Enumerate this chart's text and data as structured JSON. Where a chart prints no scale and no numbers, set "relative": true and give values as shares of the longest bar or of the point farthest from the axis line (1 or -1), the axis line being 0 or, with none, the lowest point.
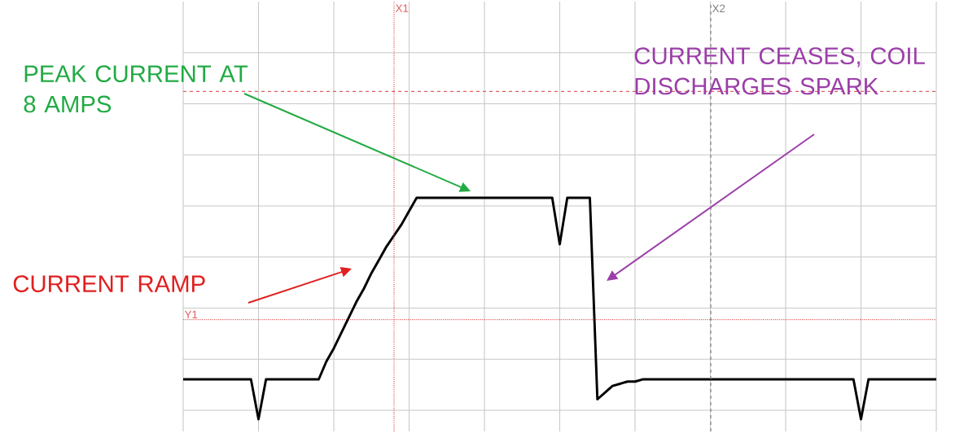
{
  "chart_data": {
    "type": "line",
    "relative": true,
    "grid": true,
    "categories": [
      null,
      null,
      null,
      null,
      null,
      null,
      null,
      null,
      null,
      null,
      null,
      null,
      null,
      null,
      null,
      null,
      null,
      null,
      null,
      null,
      null,
      null,
      null,
      null,
      null,
      null,
      null,
      null,
      null,
      null,
      null,
      null,
      null,
      null,
      null,
      null,
      null,
      null,
      null,
      null,
      null,
      null,
      null,
      null,
      null,
      null,
      null,
      null,
      null,
      null,
      null,
      null,
      null,
      null,
      null,
      null,
      null,
      null,
      null,
      null,
      null,
      null,
      null,
      null,
      null,
      null,
      null,
      null,
      null,
      null,
      null,
      null,
      null,
      null,
      null,
      null,
      null,
      null,
      null,
      null,
      null,
      null,
      null,
      null,
      null,
      null,
      null,
      null,
      null,
      null,
      null,
      null,
      null,
      null,
      null,
      null,
      null,
      null,
      null,
      null,
      null
    ],
    "series": [
      {
        "color": "#000000",
        "values": [
          0.18,
          0.18,
          0.18,
          0.18,
          0.18,
          0.18,
          0.18,
          0.18,
          0.18,
          0.18,
          0,
          0.18,
          0.18,
          0.18,
          0.18,
          0.18,
          0.18,
          0.18,
          0.18,
          0.26,
          0.32,
          0.39,
          0.46,
          0.53,
          0.59,
          0.66,
          0.72,
          0.78,
          0.83,
          0.88,
          0.94,
          1.0,
          1.0,
          1.0,
          1.0,
          1.0,
          1.0,
          1.0,
          1.0,
          1.0,
          1.0,
          1.0,
          1.0,
          1.0,
          1.0,
          1.0,
          1.0,
          1.0,
          1.0,
          1.0,
          0.79,
          1.0,
          1.0,
          1.0,
          1.0,
          0.09,
          0.12,
          0.15,
          0.16,
          0.17,
          0.17,
          0.18,
          0.18,
          0.18,
          0.18,
          0.18,
          0.18,
          0.18,
          0.18,
          0.18,
          0.18,
          0.18,
          0.18,
          0.18,
          0.18,
          0.18,
          0.18,
          0.18,
          0.18,
          0.18,
          0.18,
          0.18,
          0.18,
          0.18,
          0.18,
          0.18,
          0.18,
          0.18,
          0.18,
          0.18,
          0,
          0.18,
          0.18,
          0.18,
          0.18,
          0.18,
          0.18,
          0.18,
          0.18,
          0.18,
          0.18
        ]
      }
    ],
    "ref_lines": [
      {
        "axis": "y",
        "value": 0.45,
        "label": "Y1",
        "color": "#e06060",
        "line_style": "dotted"
      },
      {
        "axis": "y",
        "value": 1.48,
        "color": "#e06060",
        "line_style": "dashed"
      }
    ],
    "annotations": [
      "PEAK CURRENT AT 8 AMPS",
      "CURRENT RAMP",
      "CURRENT CEASES, COIL DISCHARGES SPARK",
      "X1",
      "X2"
    ]
  }
}
